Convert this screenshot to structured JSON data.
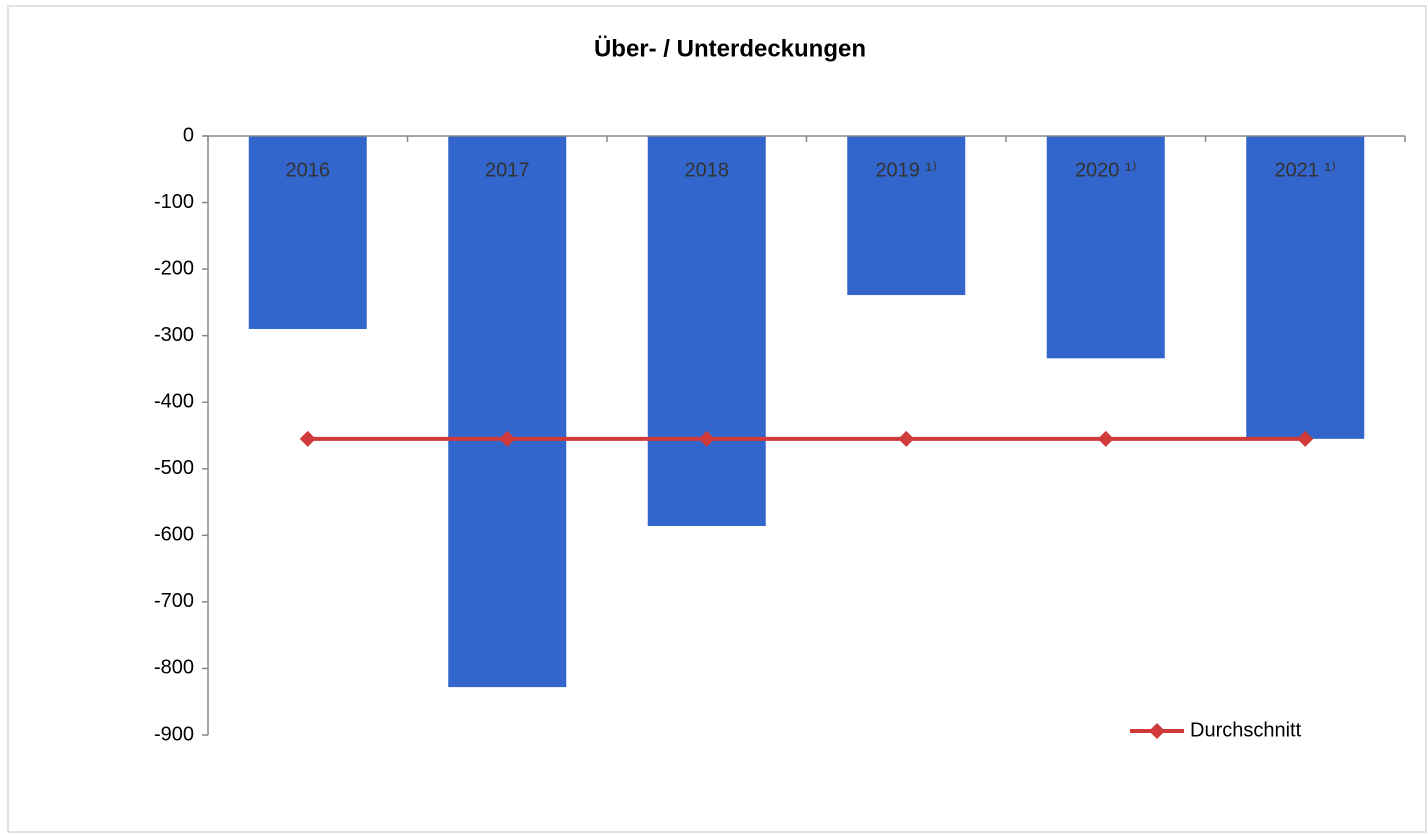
{
  "chart_data": {
    "type": "bar",
    "title": "Über- / Unterdeckungen",
    "categories": [
      "2016",
      "2017",
      "2018",
      "2019 ¹⁾",
      "2020 ¹⁾",
      "2021 ¹⁾"
    ],
    "series": [
      {
        "color": "#3366cc",
        "values": [
          -290,
          -828,
          -586,
          -239,
          -334,
          -455
        ]
      },
      {
        "name": "Durchschnitt",
        "type": "line",
        "color": "#d03a3a",
        "values": [
          -455,
          -455,
          -455,
          -455,
          -455,
          -455
        ]
      }
    ],
    "ylim": [
      -900,
      0
    ],
    "yticks": [
      0,
      -100,
      -200,
      -300,
      -400,
      -500,
      -600,
      -700,
      -800,
      -900
    ],
    "legend": "bottom-right"
  }
}
